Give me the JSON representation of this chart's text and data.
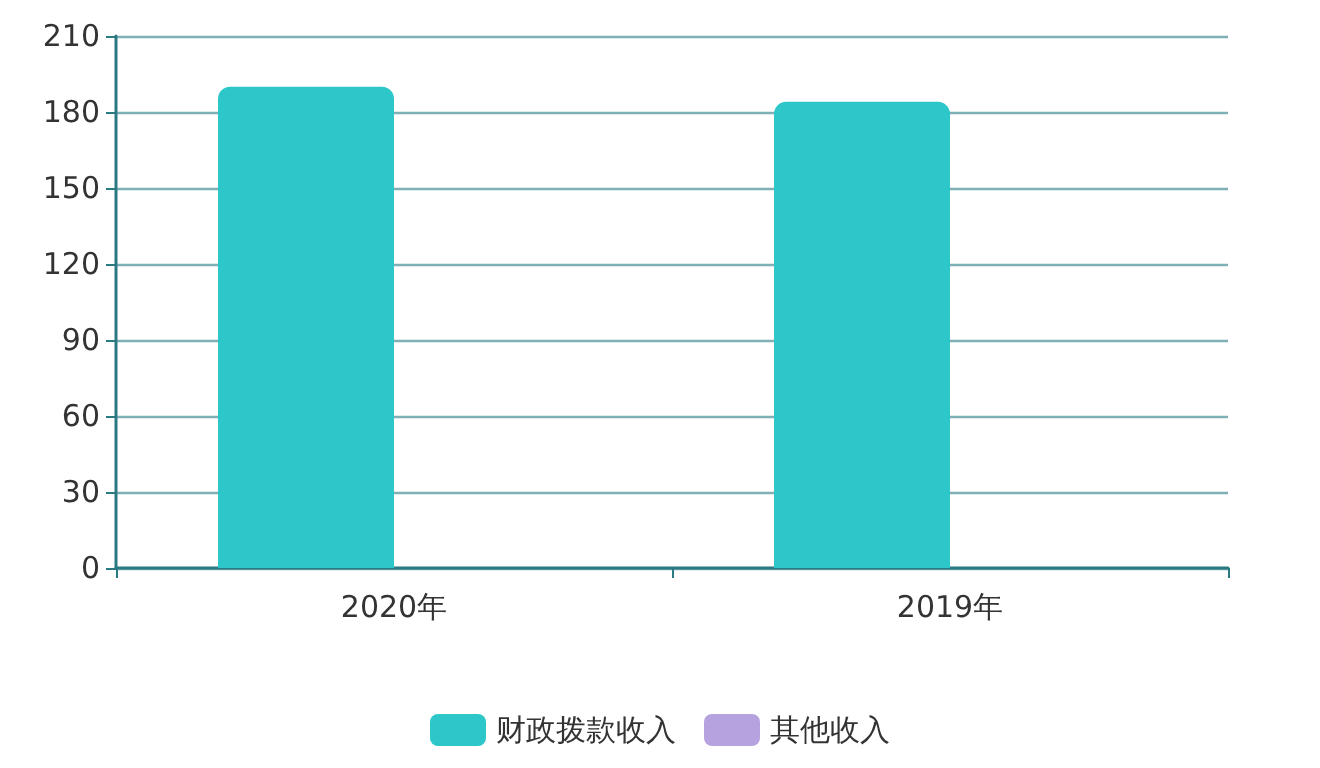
{
  "chart_data": {
    "type": "bar",
    "categories": [
      "2020年",
      "2019年"
    ],
    "series": [
      {
        "name": "财政拨款收入",
        "color": "#2ec7c9",
        "values": [
          190,
          184
        ]
      },
      {
        "name": "其他收入",
        "color": "#b6a2de",
        "values": [
          null,
          null
        ]
      }
    ],
    "ylim": [
      0,
      210
    ],
    "yticks": [
      0,
      30,
      60,
      90,
      120,
      150,
      180,
      210
    ],
    "grid": "y",
    "legend": "bottom"
  }
}
